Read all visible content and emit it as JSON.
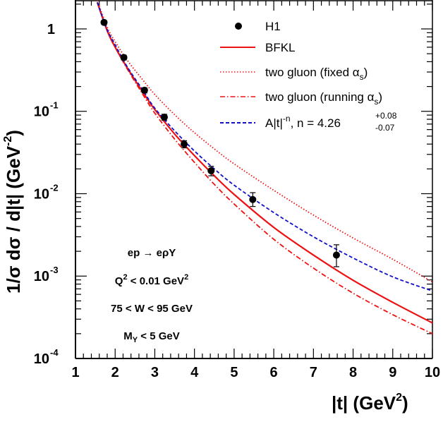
{
  "chart_data": {
    "type": "line",
    "xlabel": "|t| (GeV",
    "xlabel_sup": "2",
    "xlabel_close": ")",
    "ylabel": "1/σ dσ / d|t| (GeV",
    "ylabel_sup": "-2",
    "ylabel_close": ")",
    "xlim": [
      1,
      10
    ],
    "ylim": [
      0.0001,
      2.2
    ],
    "yscale": "log",
    "x_ticks": [
      1,
      2,
      3,
      4,
      5,
      6,
      7,
      8,
      9,
      10
    ],
    "x_tick_labels": [
      "1",
      "2",
      "3",
      "4",
      "5",
      "6",
      "7",
      "8",
      "9",
      "10"
    ],
    "y_ticks": [
      {
        "value": 1,
        "base": "1",
        "exp": ""
      },
      {
        "value": 0.1,
        "base": "10",
        "exp": "-1"
      },
      {
        "value": 0.01,
        "base": "10",
        "exp": "-2"
      },
      {
        "value": 0.001,
        "base": "10",
        "exp": "-3"
      },
      {
        "value": 0.0001,
        "base": "10",
        "exp": "-4"
      }
    ],
    "legend_position": "top-right",
    "data_points": {
      "name": "H1",
      "x": [
        1.72,
        2.22,
        2.74,
        3.24,
        3.74,
        4.42,
        5.47,
        7.58
      ],
      "y": [
        1.2,
        0.45,
        0.18,
        0.085,
        0.04,
        0.019,
        0.0085,
        0.0018
      ],
      "err_lo": [
        0.07,
        0.03,
        0.013,
        0.007,
        0.004,
        0.0025,
        0.0015,
        0.0005
      ],
      "err_hi": [
        0.07,
        0.03,
        0.013,
        0.007,
        0.004,
        0.0025,
        0.0018,
        0.0006
      ]
    },
    "series": [
      {
        "name": "BFKL",
        "color": "#ee1111",
        "style": "solid",
        "x": [
          1.55,
          1.8,
          2.0,
          2.3,
          2.7,
          3.0,
          3.5,
          4.0,
          4.5,
          5.0,
          6.0,
          7.0,
          8.0,
          9.0,
          10.0
        ],
        "y": [
          2.1,
          0.95,
          0.6,
          0.34,
          0.17,
          0.105,
          0.053,
          0.029,
          0.0165,
          0.0098,
          0.0039,
          0.0018,
          0.00089,
          0.00048,
          0.00027
        ]
      },
      {
        "name": "two gluon (fixed αs)",
        "legend_main": "two gluon (fixed α",
        "legend_sub": "s",
        "legend_close": ")",
        "color": "#ee1111",
        "style": "dotted",
        "x": [
          1.55,
          1.8,
          2.0,
          2.3,
          2.7,
          3.0,
          3.5,
          4.0,
          4.5,
          5.0,
          6.0,
          7.0,
          8.0,
          9.0,
          10.0
        ],
        "y": [
          2.2,
          1.05,
          0.7,
          0.42,
          0.24,
          0.16,
          0.091,
          0.055,
          0.035,
          0.023,
          0.011,
          0.0055,
          0.0029,
          0.0016,
          0.00085
        ]
      },
      {
        "name": "two gluon (running αs)",
        "legend_main": "two gluon (running α",
        "legend_sub": "s",
        "legend_close": ")",
        "color": "#ee1111",
        "style": "dashdot",
        "x": [
          1.55,
          1.8,
          2.0,
          2.3,
          2.7,
          3.0,
          3.5,
          4.0,
          4.5,
          5.0,
          6.0,
          7.0,
          8.0,
          9.0,
          10.0
        ],
        "y": [
          2.1,
          0.95,
          0.6,
          0.33,
          0.16,
          0.095,
          0.046,
          0.024,
          0.013,
          0.0075,
          0.0028,
          0.00125,
          0.00062,
          0.00034,
          0.0002
        ]
      },
      {
        "name": "A|t|^-n, n = 4.26 +0.08 -0.07",
        "legend_a": "A|t|",
        "legend_exp": "-n",
        "legend_n": ", n = 4.26",
        "legend_plus": "+0.08",
        "legend_minus": "-0.07",
        "color": "#1111cc",
        "style": "dashed",
        "x": [
          1.55,
          1.8,
          2.0,
          2.3,
          2.7,
          3.0,
          3.5,
          4.0,
          4.5,
          5.0,
          6.0,
          7.0,
          8.0,
          9.0,
          10.0
        ],
        "y": [
          2.1,
          0.98,
          0.64,
          0.35,
          0.18,
          0.109,
          0.058,
          0.033,
          0.02,
          0.0127,
          0.0059,
          0.003,
          0.00166,
          0.00098,
          0.00066
        ]
      }
    ],
    "annotations": {
      "process_a": "ep → eρY",
      "q2_a": "Q",
      "q2_sup": "2",
      "q2_b": " < 0.01 GeV",
      "q2_sup2": "2",
      "w_range": "75 < W < 95 GeV",
      "my_a": "M",
      "my_sub": "Y",
      "my_b": " < 5 GeV"
    }
  }
}
